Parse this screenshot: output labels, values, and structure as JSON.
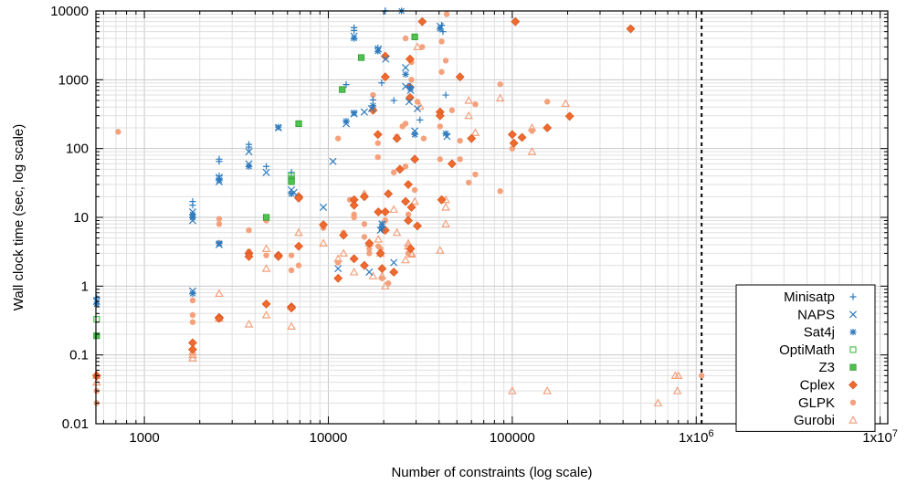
{
  "chart_data": {
    "type": "scatter",
    "xlabel": "Number of constraints (log scale)",
    "ylabel": "Wall clock time (sec, log scale)",
    "xscale": "log",
    "yscale": "log",
    "xlim": [
      545,
      11000000
    ],
    "ylim": [
      0.01,
      10000
    ],
    "grid": true,
    "legend_position": "bottom-right",
    "x_tick_labels": [
      {
        "value": 1000,
        "label": "1000"
      },
      {
        "value": 10000,
        "label": "10000"
      },
      {
        "value": 100000,
        "label": "100000"
      },
      {
        "value": 1000000,
        "label": "1x10"
      },
      {
        "value": 10000000,
        "label": "1x10"
      }
    ],
    "x_tick_superscript": "6",
    "x_tick_superscript_2": "7",
    "y_tick_labels": [
      {
        "value": 0.01,
        "label": "0.01"
      },
      {
        "value": 0.1,
        "label": "0.1"
      },
      {
        "value": 1,
        "label": "1"
      },
      {
        "value": 10,
        "label": "10"
      },
      {
        "value": 100,
        "label": "100"
      },
      {
        "value": 1000,
        "label": "1000"
      },
      {
        "value": 10000,
        "label": "10000"
      }
    ],
    "reference_line_x": 1070000,
    "series": [
      {
        "name": "Minisatp",
        "marker": "plus",
        "color": "#2e7bbf",
        "points": [
          [
            550,
            0.68
          ],
          [
            1830,
            17
          ],
          [
            1830,
            15
          ],
          [
            2550,
            70
          ],
          [
            2550,
            65
          ],
          [
            2550,
            40
          ],
          [
            3700,
            115
          ],
          [
            3700,
            105
          ],
          [
            4600,
            55
          ],
          [
            6300,
            45
          ],
          [
            12500,
            850
          ],
          [
            13800,
            5700
          ],
          [
            13800,
            5200
          ],
          [
            17500,
            510
          ],
          [
            18600,
            2900
          ],
          [
            19500,
            900
          ],
          [
            20400,
            10000
          ],
          [
            20400,
            10000
          ],
          [
            22700,
            500
          ],
          [
            27800,
            800
          ],
          [
            31500,
            260
          ],
          [
            41300,
            6200
          ],
          [
            42000,
            5000
          ],
          [
            43500,
            600
          ],
          [
            44000,
            160
          ]
        ]
      },
      {
        "name": "NAPS",
        "marker": "x",
        "color": "#2e7bbf",
        "points": [
          [
            550,
            0.6
          ],
          [
            1830,
            12
          ],
          [
            1830,
            9
          ],
          [
            1830,
            0.85
          ],
          [
            2550,
            38
          ],
          [
            2550,
            33
          ],
          [
            2550,
            4
          ],
          [
            3700,
            90
          ],
          [
            3700,
            60
          ],
          [
            4600,
            45
          ],
          [
            5350,
            200
          ],
          [
            6300,
            25
          ],
          [
            6500,
            23
          ],
          [
            9400,
            14
          ],
          [
            10600,
            65
          ],
          [
            11300,
            1.8
          ],
          [
            12500,
            230
          ],
          [
            13800,
            320
          ],
          [
            13800,
            4300
          ],
          [
            15700,
            340
          ],
          [
            16700,
            1.6
          ],
          [
            17200,
            380
          ],
          [
            18700,
            2800
          ],
          [
            19200,
            6.5
          ],
          [
            19600,
            8
          ],
          [
            20500,
            2000
          ],
          [
            22700,
            2.2
          ],
          [
            26300,
            1500
          ],
          [
            26300,
            800
          ],
          [
            27500,
            480
          ],
          [
            28000,
            700
          ],
          [
            29500,
            180
          ],
          [
            30500,
            380
          ],
          [
            40500,
            6000
          ],
          [
            44200,
            150
          ]
        ]
      },
      {
        "name": "Sat4j",
        "marker": "star",
        "color": "#2e7bbf",
        "points": [
          [
            550,
            0.55
          ],
          [
            1830,
            11
          ],
          [
            1830,
            10
          ],
          [
            1830,
            0.78
          ],
          [
            2550,
            35
          ],
          [
            2550,
            4.2
          ],
          [
            3700,
            55
          ],
          [
            5350,
            205
          ],
          [
            6300,
            22
          ],
          [
            12500,
            250
          ],
          [
            13800,
            330
          ],
          [
            13800,
            4000
          ],
          [
            17500,
            420
          ],
          [
            18600,
            2600
          ],
          [
            19500,
            7
          ],
          [
            19600,
            8
          ],
          [
            25000,
            10000
          ],
          [
            26300,
            1200
          ],
          [
            28000,
            750
          ],
          [
            29500,
            160
          ],
          [
            40500,
            5500
          ],
          [
            43500,
            165
          ]
        ]
      },
      {
        "name": "OptiMath",
        "marker": "square-open",
        "color": "#4fc34f",
        "points": [
          [
            550,
            0.33
          ],
          [
            6300,
            40
          ]
        ]
      },
      {
        "name": "Z3",
        "marker": "square",
        "color": "#4fc34f",
        "points": [
          [
            550,
            0.19
          ],
          [
            4600,
            10
          ],
          [
            6300,
            36
          ],
          [
            6300,
            33
          ],
          [
            6900,
            230
          ],
          [
            11900,
            720
          ],
          [
            15100,
            2100
          ],
          [
            29500,
            4200
          ]
        ]
      },
      {
        "name": "Cplex",
        "marker": "diamond",
        "color": "#ef6a2e",
        "points": [
          [
            550,
            0.05
          ],
          [
            1830,
            0.15
          ],
          [
            1830,
            0.12
          ],
          [
            2550,
            0.35
          ],
          [
            2550,
            0.34
          ],
          [
            3700,
            3
          ],
          [
            3700,
            2.7
          ],
          [
            4600,
            0.55
          ],
          [
            5350,
            2.8
          ],
          [
            5350,
            2.7
          ],
          [
            6300,
            0.5
          ],
          [
            6300,
            0.48
          ],
          [
            6900,
            20
          ],
          [
            6900,
            19
          ],
          [
            6900,
            3.8
          ],
          [
            9400,
            7.8
          ],
          [
            11300,
            1.3
          ],
          [
            12100,
            5.5
          ],
          [
            13800,
            2.5
          ],
          [
            13800,
            18
          ],
          [
            13800,
            15
          ],
          [
            15700,
            20
          ],
          [
            15700,
            2
          ],
          [
            16700,
            4.2
          ],
          [
            17500,
            360
          ],
          [
            18600,
            160
          ],
          [
            18700,
            12
          ],
          [
            19200,
            3
          ],
          [
            19600,
            1.8
          ],
          [
            20400,
            1100
          ],
          [
            20400,
            2200
          ],
          [
            20400,
            12
          ],
          [
            20400,
            6.5
          ],
          [
            21200,
            22
          ],
          [
            22700,
            1.6
          ],
          [
            23600,
            140
          ],
          [
            24500,
            50
          ],
          [
            26300,
            17
          ],
          [
            27200,
            30
          ],
          [
            27200,
            9
          ],
          [
            27800,
            2000
          ],
          [
            27800,
            780
          ],
          [
            27800,
            550
          ],
          [
            28000,
            3.5
          ],
          [
            28300,
            14
          ],
          [
            29500,
            70
          ],
          [
            30500,
            7.5
          ],
          [
            32400,
            7000
          ],
          [
            40500,
            340
          ],
          [
            40500,
            300
          ],
          [
            41300,
            18
          ],
          [
            47000,
            60
          ],
          [
            52000,
            1100
          ],
          [
            60000,
            140
          ],
          [
            100000,
            160
          ],
          [
            102000,
            120
          ],
          [
            104000,
            7000
          ],
          [
            113000,
            145
          ],
          [
            155000,
            200
          ],
          [
            205000,
            295
          ],
          [
            440000,
            5500
          ]
        ]
      },
      {
        "name": "GLPK",
        "marker": "circle",
        "color": "#f4a17c",
        "points": [
          [
            550,
            0.02
          ],
          [
            550,
            0.03
          ],
          [
            720,
            175
          ],
          [
            1830,
            0.62
          ],
          [
            1830,
            0.38
          ],
          [
            1830,
            0.3
          ],
          [
            2550,
            9.5
          ],
          [
            2550,
            8
          ],
          [
            2550,
            4.2
          ],
          [
            3700,
            6.5
          ],
          [
            3700,
            3.2
          ],
          [
            4600,
            9
          ],
          [
            4600,
            2.8
          ],
          [
            6300,
            2.8
          ],
          [
            6300,
            1.7
          ],
          [
            6900,
            2
          ],
          [
            9400,
            7
          ],
          [
            11300,
            2.2
          ],
          [
            11300,
            140
          ],
          [
            12100,
            6
          ],
          [
            13100,
            18
          ],
          [
            13800,
            10
          ],
          [
            13800,
            11
          ],
          [
            15700,
            8
          ],
          [
            15700,
            5.2
          ],
          [
            16700,
            3
          ],
          [
            16700,
            3.5
          ],
          [
            17500,
            600
          ],
          [
            18600,
            120
          ],
          [
            18600,
            75
          ],
          [
            18700,
            3.8
          ],
          [
            19200,
            3.5
          ],
          [
            19600,
            1.3
          ],
          [
            20400,
            9
          ],
          [
            21200,
            1.1
          ],
          [
            22700,
            45
          ],
          [
            23600,
            150
          ],
          [
            25300,
            210
          ],
          [
            26300,
            55
          ],
          [
            26300,
            230
          ],
          [
            26300,
            4000
          ],
          [
            27200,
            11
          ],
          [
            27200,
            3
          ],
          [
            28300,
            1000
          ],
          [
            28300,
            1800
          ],
          [
            29500,
            25
          ],
          [
            30500,
            480
          ],
          [
            32400,
            3000
          ],
          [
            33000,
            140
          ],
          [
            40500,
            210
          ],
          [
            40500,
            70
          ],
          [
            41300,
            3600
          ],
          [
            41300,
            1300
          ],
          [
            43500,
            1900
          ],
          [
            44000,
            9000
          ],
          [
            47000,
            360
          ],
          [
            52000,
            70
          ],
          [
            52000,
            130
          ],
          [
            58000,
            32
          ],
          [
            63000,
            42
          ],
          [
            63000,
            440
          ],
          [
            86000,
            24
          ],
          [
            86000,
            860
          ],
          [
            100000,
            100
          ],
          [
            128000,
            180
          ],
          [
            155000,
            480
          ],
          [
            1070000,
            0.05
          ]
        ]
      },
      {
        "name": "Gurobi",
        "marker": "triangle",
        "color": "#f4a17c",
        "points": [
          [
            550,
            0.04
          ],
          [
            550,
            0.05
          ],
          [
            1830,
            0.09
          ],
          [
            1830,
            0.1
          ],
          [
            1830,
            0.11
          ],
          [
            2550,
            0.78
          ],
          [
            2550,
            0.34
          ],
          [
            3700,
            0.28
          ],
          [
            4600,
            0.38
          ],
          [
            4600,
            3.5
          ],
          [
            4600,
            1.8
          ],
          [
            6300,
            0.26
          ],
          [
            6900,
            6
          ],
          [
            9400,
            4.2
          ],
          [
            11300,
            2.5
          ],
          [
            12100,
            3
          ],
          [
            13800,
            1.6
          ],
          [
            15700,
            22
          ],
          [
            16700,
            4.2
          ],
          [
            17500,
            1.4
          ],
          [
            18700,
            4.8
          ],
          [
            19200,
            3
          ],
          [
            19600,
            1.4
          ],
          [
            20400,
            1
          ],
          [
            22700,
            13
          ],
          [
            23600,
            6
          ],
          [
            26300,
            2.4
          ],
          [
            27200,
            3.8
          ],
          [
            27200,
            4.2
          ],
          [
            28300,
            3
          ],
          [
            28300,
            2.9
          ],
          [
            29500,
            17
          ],
          [
            30500,
            3000
          ],
          [
            31500,
            410
          ],
          [
            40500,
            3.3
          ],
          [
            43500,
            8
          ],
          [
            43500,
            14
          ],
          [
            43500,
            18
          ],
          [
            58000,
            300
          ],
          [
            58000,
            500
          ],
          [
            63000,
            170
          ],
          [
            86000,
            540
          ],
          [
            100000,
            0.03
          ],
          [
            128000,
            90
          ],
          [
            128000,
            200
          ],
          [
            155000,
            0.03
          ],
          [
            195000,
            450
          ],
          [
            620000,
            0.02
          ],
          [
            770000,
            0.05
          ],
          [
            790000,
            0.03
          ],
          [
            800000,
            0.05
          ]
        ]
      }
    ]
  }
}
